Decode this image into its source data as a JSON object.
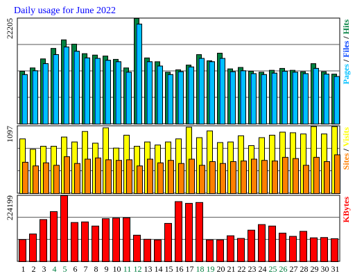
{
  "title": "Daily usage for June 2022",
  "colors": {
    "title": "#0000ff",
    "hits": "#008040",
    "files": "#0040ff",
    "pages": "#00c0ff",
    "visits": "#ffff00",
    "sites": "#ff8000",
    "kbytes": "#ff0000",
    "weekend_label": "#008040",
    "grid": "#555555",
    "frame": "#000000"
  },
  "chart_data": [
    {
      "type": "bar",
      "panel": "hits-files-pages",
      "max_label": "22205",
      "ylim": [
        0,
        22205
      ],
      "series": [
        {
          "name": "Hits",
          "values": [
            11100,
            11800,
            13700,
            15900,
            17700,
            16800,
            14800,
            14500,
            14300,
            13600,
            11800,
            22205,
            13900,
            13100,
            10900,
            11400,
            12400,
            14600,
            13300,
            14900,
            11600,
            11900,
            11100,
            10900,
            11300,
            11700,
            11300,
            11000,
            12700,
            11000,
            10500
          ]
        },
        {
          "name": "Files",
          "values": [
            10400,
            11200,
            12700,
            14600,
            16200,
            15300,
            13900,
            13800,
            13400,
            13100,
            10900,
            21000,
            13100,
            12200,
            10400,
            11000,
            12000,
            13800,
            13100,
            13800,
            11000,
            11200,
            10600,
            10400,
            10700,
            11100,
            10900,
            10600,
            11700,
            10500,
            10000
          ]
        },
        {
          "name": "Pages",
          "values": [
            4400,
            4900,
            5600,
            6100,
            6800,
            6500,
            5800,
            5500,
            5400,
            5300,
            4800,
            11600,
            5700,
            5200,
            4200,
            4500,
            5000,
            5800,
            5300,
            5600,
            4300,
            4600,
            4400,
            4200,
            4500,
            4700,
            4500,
            4400,
            4900,
            4400,
            4100
          ]
        }
      ],
      "legend": [
        "Hits",
        "Files",
        "Pages"
      ]
    },
    {
      "type": "bar",
      "panel": "visits-sites",
      "max_label": "1097",
      "ylim": [
        0,
        1097
      ],
      "series": [
        {
          "name": "Visits",
          "values": [
            890,
            720,
            770,
            770,
            920,
            840,
            1010,
            820,
            1070,
            740,
            950,
            770,
            840,
            790,
            840,
            890,
            1080,
            910,
            1020,
            830,
            840,
            940,
            780,
            910,
            950,
            1000,
            990,
            970,
            1090,
            970,
            1090
          ]
        },
        {
          "name": "Sites",
          "values": [
            510,
            450,
            500,
            460,
            600,
            490,
            560,
            580,
            550,
            540,
            550,
            450,
            560,
            500,
            540,
            490,
            560,
            460,
            520,
            490,
            520,
            530,
            560,
            540,
            530,
            590,
            570,
            460,
            590,
            520,
            630
          ]
        }
      ],
      "legend": [
        "Sites",
        "Visits"
      ]
    },
    {
      "type": "bar",
      "panel": "kbytes",
      "max_label": "224199",
      "ylim": [
        0,
        224199
      ],
      "series": [
        {
          "name": "KBytes",
          "values": [
            75000,
            94000,
            143000,
            170000,
            224199,
            133000,
            135000,
            121000,
            146000,
            148000,
            149000,
            90000,
            76000,
            74000,
            130000,
            204000,
            198000,
            201000,
            74000,
            74000,
            88000,
            79000,
            107000,
            126000,
            121000,
            97000,
            86000,
            103000,
            81000,
            82000,
            78000
          ]
        }
      ],
      "legend": [
        "KBytes"
      ]
    }
  ],
  "x_labels": [
    "1",
    "2",
    "3",
    "4",
    "5",
    "6",
    "7",
    "8",
    "9",
    "10",
    "11",
    "12",
    "13",
    "14",
    "15",
    "16",
    "17",
    "18",
    "19",
    "20",
    "21",
    "22",
    "23",
    "24",
    "25",
    "26",
    "27",
    "28",
    "29",
    "30",
    "31"
  ],
  "weekend_days": [
    4,
    5,
    11,
    12,
    18,
    19,
    25,
    26
  ]
}
